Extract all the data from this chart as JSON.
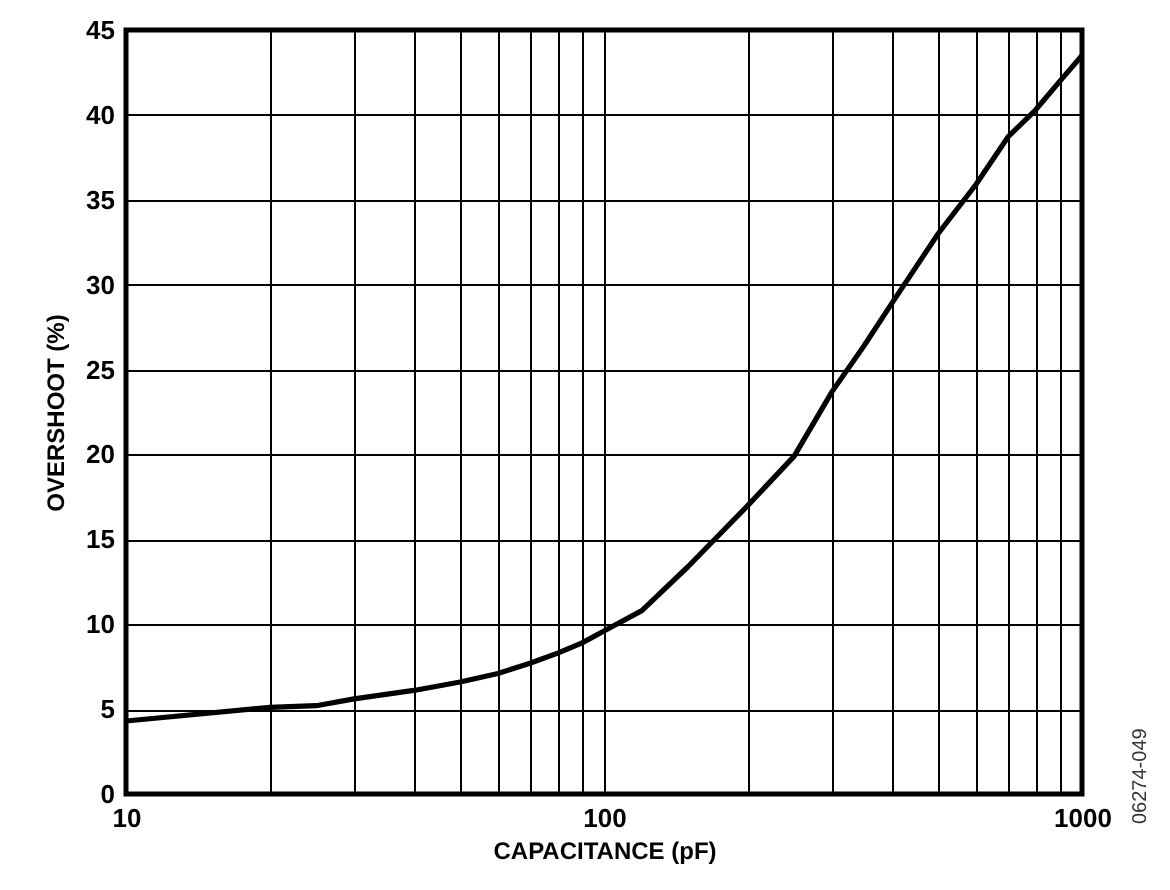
{
  "chart_data": {
    "type": "line",
    "xlabel": "CAPACITANCE (pF)",
    "ylabel": "OVERSHOOT (%)",
    "annotations": [
      "06274-049"
    ],
    "log": "x",
    "grid": true,
    "marker": "none",
    "line_style": "solid",
    "xlim": [
      10,
      1000
    ],
    "ylim": [
      0,
      45
    ],
    "xticks": [
      10,
      {
        "value": 20,
        "label": null
      },
      {
        "value": 30,
        "label": null
      },
      {
        "value": 40,
        "label": null
      },
      {
        "value": 50,
        "label": null
      },
      {
        "value": 60,
        "label": null
      },
      {
        "value": 70,
        "label": null
      },
      {
        "value": 80,
        "label": null
      },
      {
        "value": 90,
        "label": null
      },
      100,
      {
        "value": 200,
        "label": null
      },
      {
        "value": 300,
        "label": null
      },
      {
        "value": 400,
        "label": null
      },
      {
        "value": 500,
        "label": null
      },
      {
        "value": 600,
        "label": null
      },
      {
        "value": 700,
        "label": null
      },
      {
        "value": 800,
        "label": null
      },
      {
        "value": 900,
        "label": null
      },
      1000
    ],
    "yticks": [
      0,
      5,
      10,
      15,
      20,
      25,
      30,
      35,
      40,
      45
    ],
    "x": [
      10,
      20,
      25,
      30,
      40,
      50,
      60,
      70,
      80,
      90,
      100,
      120,
      150,
      200,
      250,
      300,
      350,
      400,
      500,
      600,
      700,
      800,
      900,
      1000
    ],
    "series": [
      {
        "color": "#000000",
        "values": [
          4.3,
          5.1,
          5.2,
          5.6,
          6.1,
          6.6,
          7.1,
          7.7,
          8.3,
          8.9,
          9.6,
          10.8,
          13.4,
          17,
          19.9,
          23.7,
          26.4,
          28.9,
          33,
          35.9,
          38.7,
          40.3,
          42,
          43.5
        ]
      }
    ]
  }
}
